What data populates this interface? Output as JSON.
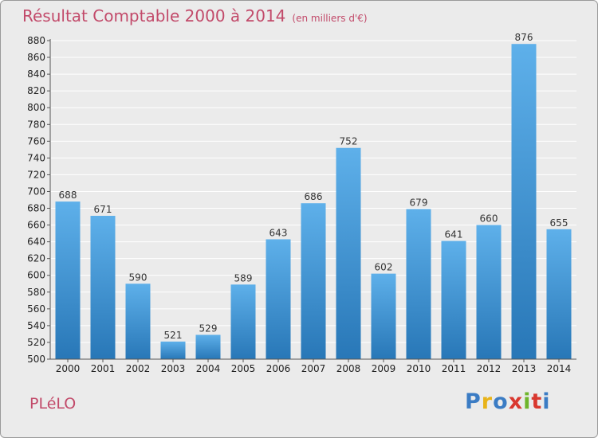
{
  "header": {
    "title": "Résultat Comptable 2000 à 2014",
    "subtitle": "(en milliers d'€)"
  },
  "footer": {
    "town": "PLéLO",
    "brand": {
      "letters": [
        "P",
        "r",
        "o",
        "x",
        "i",
        "t",
        "i"
      ]
    },
    "brand_colors": [
      "#3b7cc4",
      "#e8b319",
      "#3b7cc4",
      "#d9382f",
      "#6fb52c",
      "#d9382f",
      "#3b7cc4"
    ]
  },
  "colors": {
    "bar_top": "#5eb0ea",
    "bar_bottom": "#2877b7",
    "grid": "#ffffff",
    "background": "#ebebeb"
  },
  "chart_data": {
    "type": "bar",
    "title": "Résultat Comptable 2000 à 2014",
    "subtitle": "(en milliers d'€)",
    "categories": [
      "2000",
      "2001",
      "2002",
      "2003",
      "2004",
      "2005",
      "2006",
      "2007",
      "2008",
      "2009",
      "2010",
      "2011",
      "2012",
      "2013",
      "2014"
    ],
    "values": [
      688,
      671,
      590,
      521,
      529,
      589,
      643,
      686,
      752,
      602,
      679,
      641,
      660,
      876,
      655
    ],
    "ylim": [
      500,
      880
    ],
    "ytick_step": 20,
    "grid": true,
    "xlabel": "",
    "ylabel": ""
  }
}
